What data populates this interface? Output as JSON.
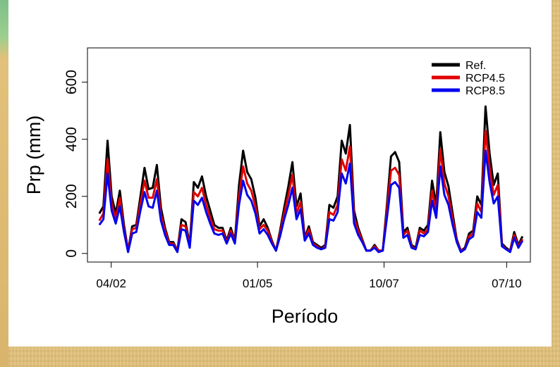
{
  "chart_data": {
    "type": "line",
    "xlabel": "Período",
    "ylabel": "Prp (mm)",
    "xlim": [
      0,
      112
    ],
    "ylim": [
      -30,
      720
    ],
    "x_ticks": [
      {
        "at": 6,
        "label": "04/02"
      },
      {
        "at": 43,
        "label": "01/05"
      },
      {
        "at": 75,
        "label": "10/07"
      },
      {
        "at": 106,
        "label": "07/10"
      }
    ],
    "y_ticks": [
      0,
      200,
      400,
      600
    ],
    "legend_position": "top-right",
    "series": [
      {
        "name": "Ref.",
        "color": "#000000",
        "values": [
          140,
          165,
          395,
          200,
          140,
          220,
          100,
          10,
          95,
          100,
          200,
          300,
          225,
          230,
          310,
          160,
          90,
          40,
          40,
          10,
          120,
          110,
          30,
          250,
          230,
          270,
          200,
          150,
          100,
          90,
          90,
          45,
          90,
          45,
          240,
          360,
          285,
          260,
          195,
          95,
          120,
          90,
          45,
          10,
          80,
          160,
          235,
          320,
          165,
          210,
          55,
          95,
          40,
          30,
          20,
          30,
          170,
          160,
          200,
          395,
          350,
          450,
          150,
          90,
          50,
          10,
          10,
          30,
          10,
          10,
          170,
          340,
          355,
          320,
          75,
          90,
          30,
          20,
          90,
          80,
          100,
          255,
          170,
          425,
          285,
          235,
          140,
          50,
          10,
          20,
          70,
          80,
          200,
          170,
          515,
          350,
          240,
          280,
          35,
          20,
          10,
          75,
          30,
          60
        ]
      },
      {
        "name": "RCP4.5",
        "color": "#e00000",
        "values": [
          115,
          140,
          330,
          175,
          120,
          195,
          85,
          10,
          85,
          90,
          175,
          255,
          195,
          195,
          260,
          135,
          80,
          35,
          35,
          10,
          100,
          95,
          25,
          215,
          200,
          230,
          170,
          125,
          85,
          80,
          80,
          40,
          80,
          40,
          200,
          305,
          245,
          220,
          165,
          85,
          100,
          80,
          40,
          10,
          70,
          140,
          205,
          275,
          140,
          180,
          50,
          85,
          35,
          25,
          15,
          25,
          145,
          135,
          170,
          330,
          290,
          375,
          125,
          80,
          45,
          10,
          10,
          25,
          10,
          10,
          150,
          290,
          300,
          275,
          65,
          80,
          25,
          15,
          80,
          70,
          85,
          220,
          145,
          365,
          245,
          200,
          120,
          45,
          10,
          15,
          60,
          70,
          175,
          145,
          430,
          300,
          205,
          240,
          30,
          15,
          10,
          65,
          25,
          50
        ]
      },
      {
        "name": "RCP8.5",
        "color": "#0000ee",
        "values": [
          100,
          120,
          280,
          150,
          105,
          165,
          75,
          5,
          70,
          75,
          150,
          215,
          165,
          160,
          220,
          115,
          65,
          30,
          30,
          5,
          85,
          80,
          20,
          185,
          170,
          195,
          145,
          105,
          70,
          65,
          70,
          35,
          70,
          35,
          170,
          255,
          205,
          185,
          140,
          70,
          85,
          65,
          35,
          10,
          60,
          120,
          170,
          230,
          120,
          155,
          45,
          70,
          30,
          20,
          15,
          20,
          120,
          115,
          145,
          280,
          245,
          315,
          105,
          65,
          40,
          10,
          10,
          20,
          5,
          10,
          125,
          240,
          250,
          230,
          55,
          65,
          20,
          15,
          65,
          60,
          75,
          185,
          125,
          305,
          205,
          170,
          100,
          40,
          5,
          15,
          50,
          60,
          145,
          125,
          360,
          250,
          175,
          200,
          25,
          15,
          5,
          55,
          20,
          45
        ]
      }
    ]
  }
}
